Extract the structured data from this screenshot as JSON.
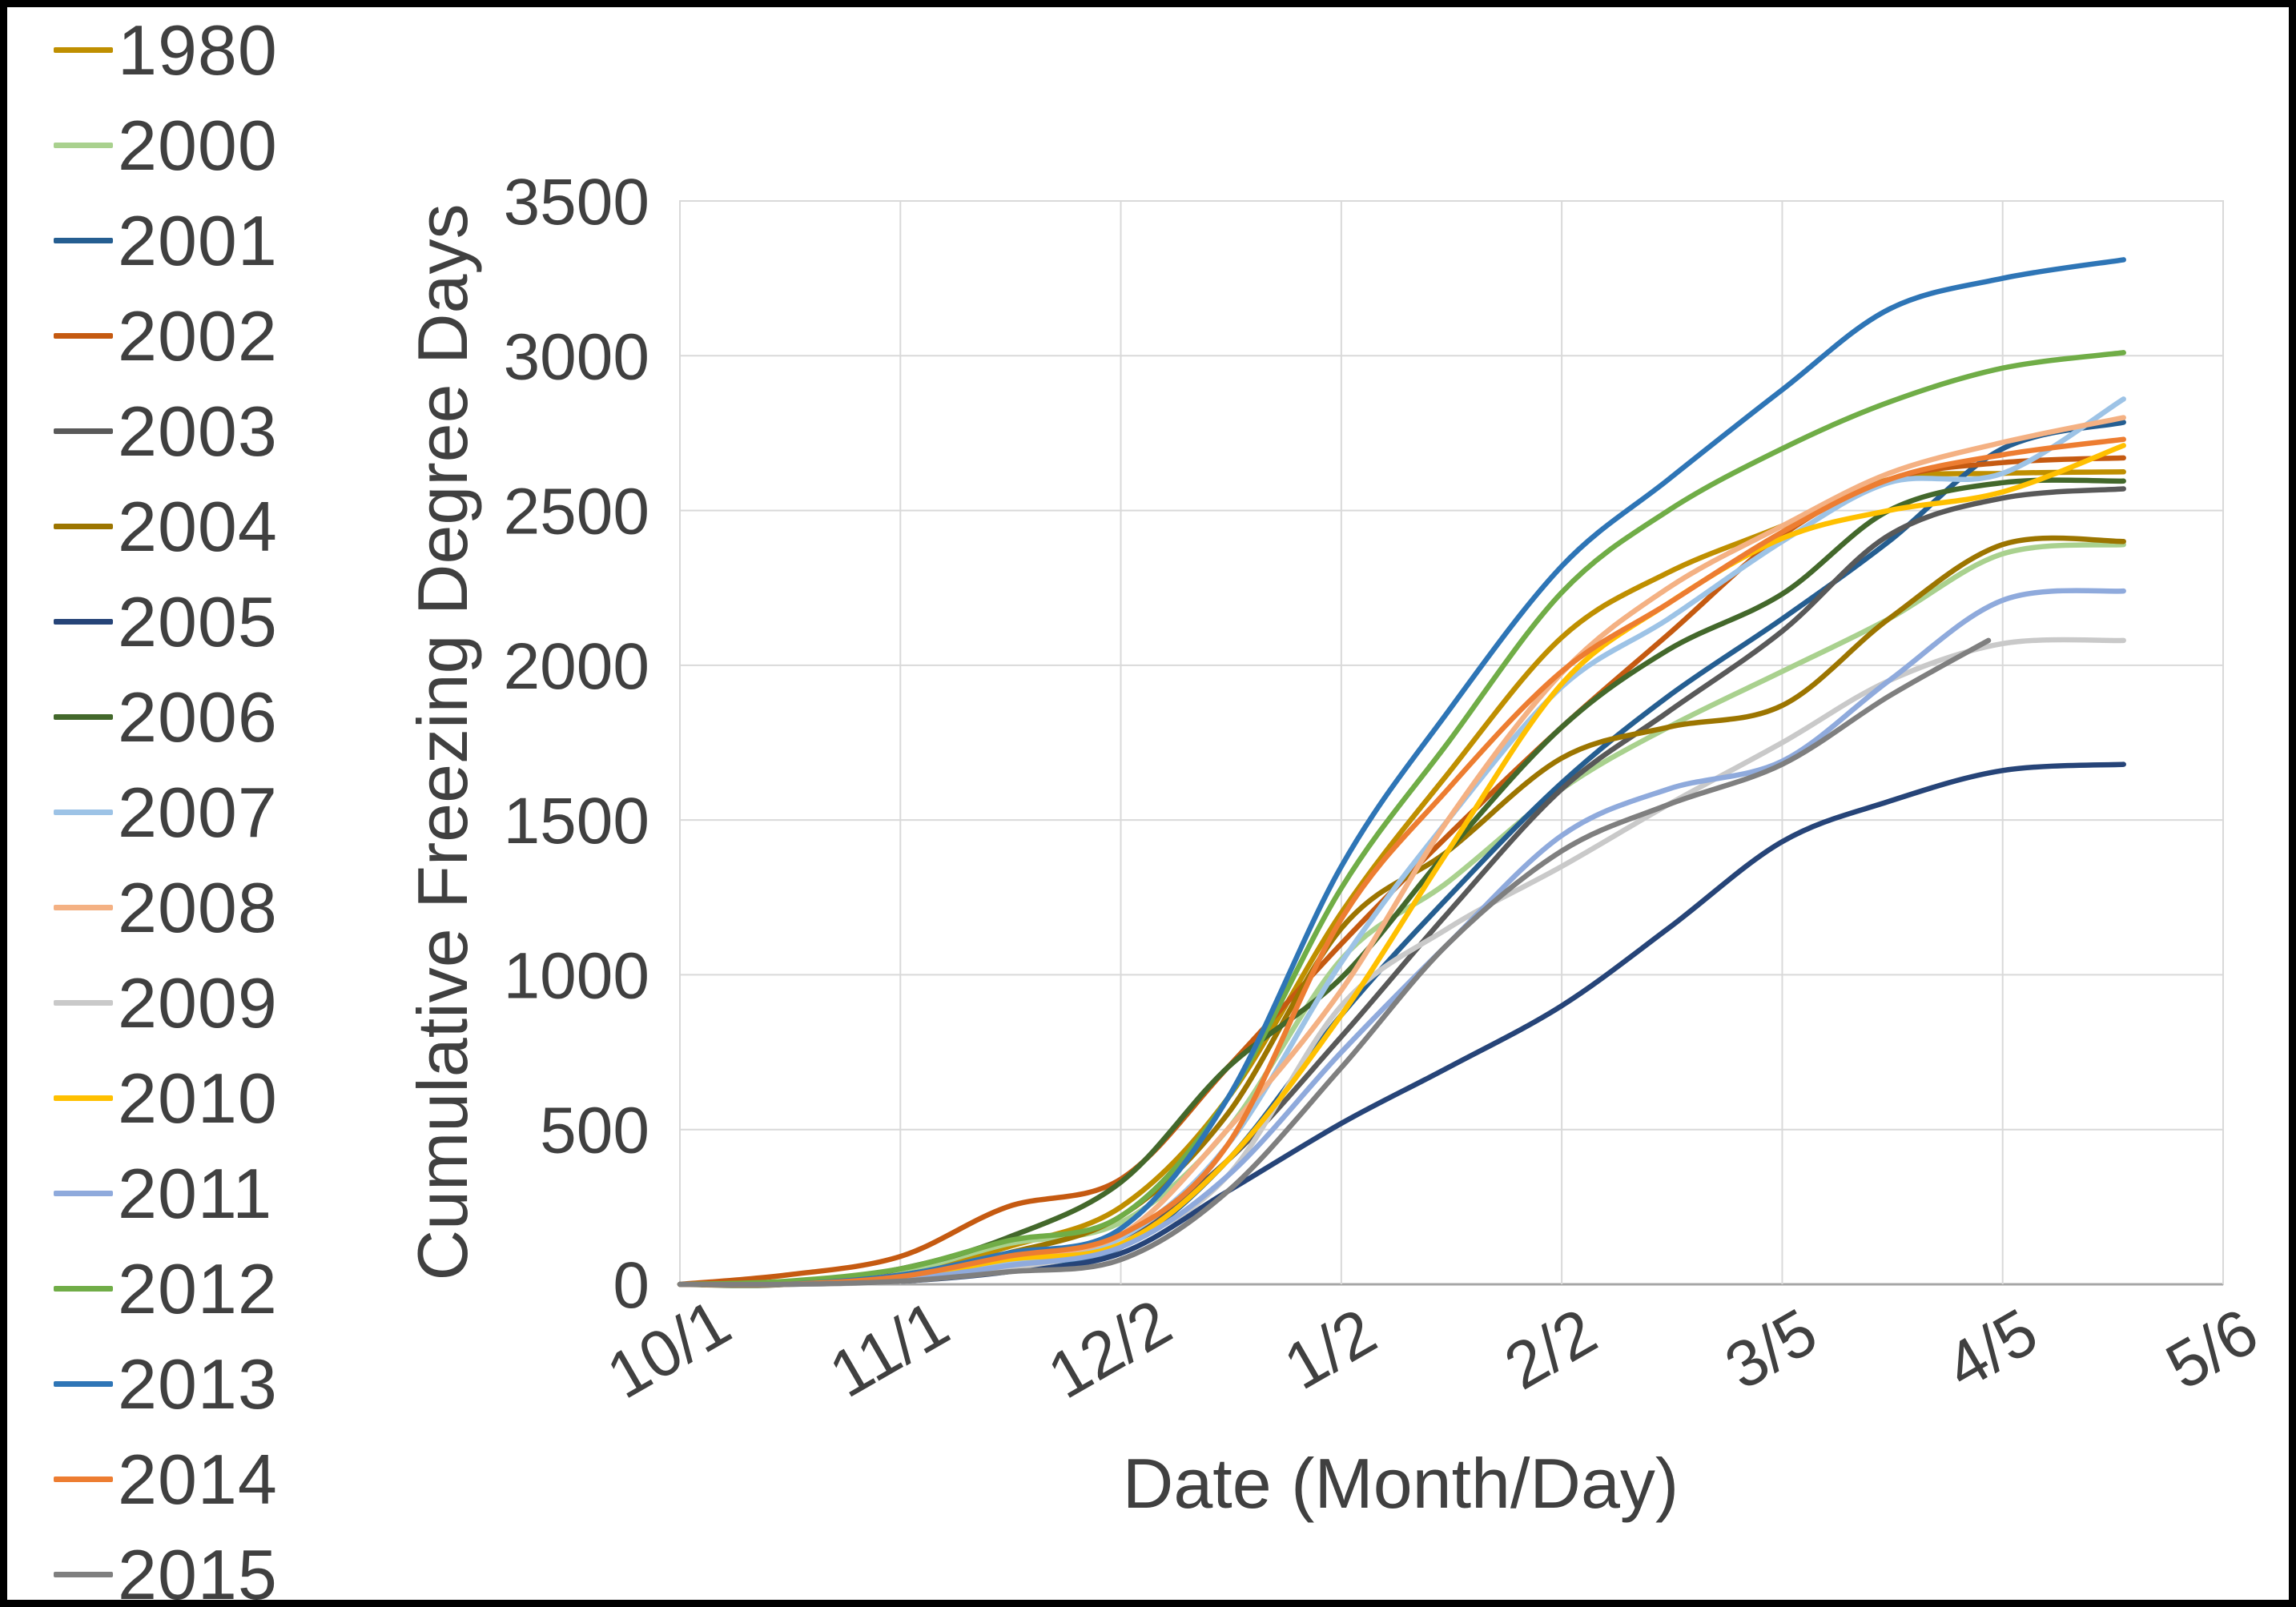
{
  "figure": {
    "kind": "excel-style line chart",
    "background": "#FFFFFF",
    "border_color": "#000000"
  },
  "colors": {
    "text": "#404040",
    "gridline": "#D9D9D9",
    "axis_line": "#A6A6A6",
    "plot_border": "#D9D9D9"
  },
  "chart_data": {
    "type": "line",
    "title": "",
    "xlabel": "Date (Month/Day)",
    "ylabel": "Cumulative Freezing Degree Days",
    "x_unit": "days since 10/1",
    "x_tick_labels": [
      "10/1",
      "11/1",
      "12/2",
      "1/2",
      "2/2",
      "3/5",
      "4/5",
      "5/6"
    ],
    "x_tick_days": [
      0,
      31,
      62,
      93,
      124,
      155,
      186,
      217
    ],
    "xlim_days": [
      0,
      217
    ],
    "y_ticks": [
      0,
      500,
      1000,
      1500,
      2000,
      2500,
      3000,
      3500
    ],
    "ylim": [
      0,
      3500
    ],
    "grid": true,
    "legend_position": "left",
    "legend_order": [
      "1980",
      "2000",
      "2001",
      "2002",
      "2003",
      "2004",
      "2005",
      "2006",
      "2007",
      "2008",
      "2009",
      "2010",
      "2011",
      "2012",
      "2013",
      "2014",
      "2015"
    ],
    "series": [
      {
        "name": "1980",
        "color": "#BF8F00",
        "x_days": [
          0,
          15,
          31,
          46,
          62,
          77,
          93,
          108,
          124,
          139,
          155,
          170,
          186,
          203
        ],
        "values": [
          0,
          0,
          30,
          120,
          250,
          600,
          1200,
          1650,
          2090,
          2300,
          2450,
          2600,
          2620,
          2625
        ]
      },
      {
        "name": "2000",
        "color": "#A9D18E",
        "x_days": [
          0,
          15,
          31,
          46,
          62,
          77,
          93,
          108,
          124,
          139,
          155,
          170,
          186,
          203
        ],
        "values": [
          0,
          5,
          40,
          130,
          200,
          500,
          1050,
          1300,
          1600,
          1800,
          1980,
          2150,
          2360,
          2390
        ]
      },
      {
        "name": "2001",
        "color": "#255E91",
        "x_days": [
          0,
          15,
          31,
          46,
          62,
          77,
          93,
          108,
          124,
          139,
          155,
          170,
          186,
          203
        ],
        "values": [
          0,
          0,
          20,
          60,
          120,
          400,
          870,
          1250,
          1620,
          1900,
          2150,
          2400,
          2700,
          2785
        ]
      },
      {
        "name": "2002",
        "color": "#C55A11",
        "x_days": [
          0,
          15,
          31,
          46,
          62,
          77,
          93,
          108,
          124,
          139,
          155,
          170,
          186,
          203
        ],
        "values": [
          0,
          30,
          90,
          250,
          340,
          700,
          1100,
          1450,
          1800,
          2100,
          2420,
          2600,
          2655,
          2670
        ]
      },
      {
        "name": "2003",
        "color": "#595959",
        "x_days": [
          0,
          15,
          31,
          46,
          62,
          77,
          93,
          108,
          124,
          139,
          155,
          170,
          186,
          203
        ],
        "values": [
          0,
          0,
          20,
          80,
          150,
          400,
          800,
          1200,
          1600,
          1850,
          2110,
          2420,
          2540,
          2570
        ]
      },
      {
        "name": "2004",
        "color": "#9C7500",
        "x_days": [
          0,
          15,
          31,
          46,
          62,
          77,
          93,
          108,
          124,
          139,
          155,
          170,
          186,
          203
        ],
        "values": [
          0,
          0,
          30,
          100,
          220,
          550,
          1150,
          1400,
          1700,
          1800,
          1870,
          2150,
          2390,
          2400
        ]
      },
      {
        "name": "2005",
        "color": "#264478",
        "x_days": [
          0,
          15,
          31,
          46,
          62,
          77,
          93,
          108,
          124,
          139,
          155,
          170,
          186,
          203
        ],
        "values": [
          0,
          0,
          10,
          40,
          100,
          300,
          520,
          700,
          900,
          1150,
          1430,
          1560,
          1660,
          1680
        ]
      },
      {
        "name": "2006",
        "color": "#43682B",
        "x_days": [
          0,
          15,
          31,
          46,
          62,
          77,
          93,
          108,
          124,
          139,
          155,
          170,
          186,
          203
        ],
        "values": [
          0,
          0,
          50,
          150,
          330,
          700,
          990,
          1400,
          1800,
          2050,
          2230,
          2500,
          2590,
          2595
        ]
      },
      {
        "name": "2007",
        "color": "#9DC3E6",
        "x_days": [
          0,
          15,
          31,
          46,
          62,
          77,
          93,
          108,
          124,
          139,
          155,
          170,
          186,
          203
        ],
        "values": [
          0,
          0,
          20,
          70,
          150,
          450,
          1040,
          1500,
          1930,
          2150,
          2400,
          2590,
          2620,
          2860
        ]
      },
      {
        "name": "2008",
        "color": "#F4B183",
        "x_days": [
          0,
          15,
          31,
          46,
          62,
          77,
          93,
          108,
          124,
          139,
          155,
          170,
          186,
          203
        ],
        "values": [
          0,
          0,
          30,
          90,
          160,
          500,
          950,
          1500,
          1975,
          2250,
          2450,
          2620,
          2720,
          2800
        ]
      },
      {
        "name": "2009",
        "color": "#C9C9C9",
        "x_days": [
          0,
          15,
          31,
          46,
          62,
          77,
          93,
          108,
          124,
          139,
          155,
          170,
          186,
          203
        ],
        "values": [
          0,
          0,
          10,
          50,
          130,
          350,
          900,
          1150,
          1350,
          1550,
          1750,
          1950,
          2070,
          2080
        ]
      },
      {
        "name": "2010",
        "color": "#FFC000",
        "x_days": [
          0,
          15,
          31,
          46,
          62,
          77,
          93,
          108,
          124,
          139,
          155,
          170,
          186,
          203
        ],
        "values": [
          0,
          0,
          20,
          80,
          130,
          400,
          870,
          1400,
          1940,
          2200,
          2410,
          2500,
          2560,
          2710
        ]
      },
      {
        "name": "2011",
        "color": "#8FAADC",
        "x_days": [
          0,
          15,
          31,
          46,
          62,
          77,
          93,
          108,
          124,
          139,
          155,
          170,
          186,
          203
        ],
        "values": [
          0,
          0,
          15,
          60,
          120,
          350,
          750,
          1100,
          1450,
          1600,
          1690,
          1950,
          2210,
          2240
        ]
      },
      {
        "name": "2012",
        "color": "#70AD47",
        "x_days": [
          0,
          15,
          31,
          46,
          62,
          77,
          93,
          108,
          124,
          139,
          155,
          170,
          186,
          203
        ],
        "values": [
          0,
          10,
          50,
          140,
          220,
          600,
          1280,
          1750,
          2235,
          2500,
          2700,
          2850,
          2960,
          3010
        ]
      },
      {
        "name": "2013",
        "color": "#2E75B6",
        "x_days": [
          0,
          15,
          31,
          46,
          62,
          77,
          93,
          108,
          124,
          139,
          155,
          170,
          186,
          203
        ],
        "values": [
          0,
          0,
          30,
          100,
          180,
          600,
          1350,
          1850,
          2320,
          2600,
          2890,
          3150,
          3250,
          3310
        ]
      },
      {
        "name": "2014",
        "color": "#ED7D31",
        "x_days": [
          0,
          15,
          31,
          46,
          62,
          77,
          93,
          108,
          124,
          139,
          155,
          170,
          186,
          203
        ],
        "values": [
          0,
          0,
          25,
          90,
          160,
          450,
          1180,
          1600,
          1980,
          2200,
          2430,
          2600,
          2680,
          2730
        ]
      },
      {
        "name": "2015",
        "color": "#7F7F7F",
        "x_days": [
          0,
          15,
          31,
          46,
          62,
          77,
          93,
          108,
          124,
          139,
          155,
          170,
          184
        ],
        "values": [
          0,
          0,
          10,
          40,
          80,
          300,
          700,
          1100,
          1400,
          1550,
          1680,
          1900,
          2080
        ]
      }
    ]
  }
}
